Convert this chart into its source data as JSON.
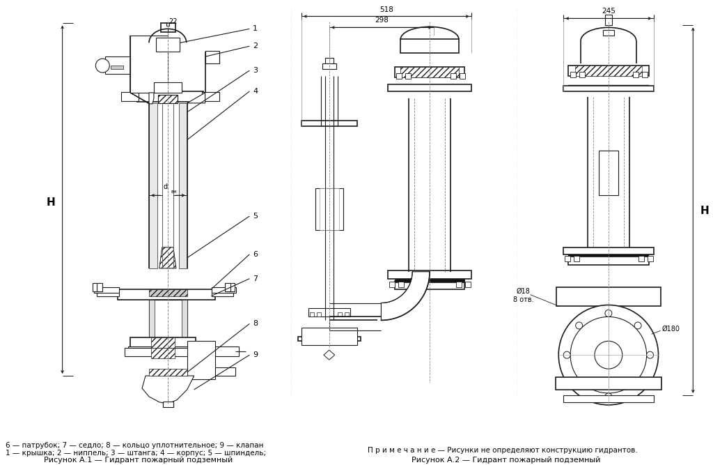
{
  "bg_color": "#ffffff",
  "line_color": "#1a1a1a",
  "hatch_color": "#333333",
  "gray1": "#cccccc",
  "gray2": "#e8e8e8",
  "gray3": "#aaaaaa",
  "title1": "Рисунок А.1 — Гидрант пожарный подземный",
  "title2": "Рисунок А.2 — Гидрант пожарный подземный",
  "legend1_line1": "1 — крышка; 2 — ниппель; 3 — штанга; 4 — корпус; 5 — шпиндель;",
  "legend1_line2": "6 — патрубок; 7 — седло; 8 — кольцо уплотнительное; 9 — клапан",
  "note": "П р и м е ч а н и е — Рисунки не определяют конструкцию гидрантов.",
  "dim_22": "22",
  "dim_518": "518",
  "dim_298": "298",
  "dim_245": "245",
  "dim_H": "H",
  "dim_dv": "d  ",
  "dim_vn": "вн",
  "dim_phi18": "Ø18",
  "dim_8otv": "8 отв.",
  "dim_phi180": "Ø180",
  "labels": [
    "1",
    "2",
    "3",
    "4",
    "5",
    "6",
    "7",
    "8",
    "9"
  ]
}
